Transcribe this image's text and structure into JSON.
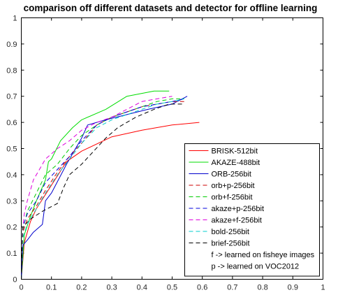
{
  "chart_data": {
    "type": "line",
    "title": "comparison off different datasets and detector for offline learning",
    "xlabel": "",
    "ylabel": "",
    "xlim": [
      0,
      1
    ],
    "ylim": [
      0,
      1
    ],
    "xticks": [
      "0",
      "0.1",
      "0.2",
      "0.3",
      "0.4",
      "0.5",
      "0.6",
      "0.7",
      "0.8",
      "0.9",
      "1"
    ],
    "yticks": [
      "0",
      "0.1",
      "0.2",
      "0.3",
      "0.4",
      "0.5",
      "0.6",
      "0.7",
      "0.8",
      "0.9",
      "1"
    ],
    "grid": false,
    "legend_position": "bottom-right",
    "legend_notes": [
      "f -> learned on fisheye images",
      "p -> learned on VOC2012"
    ],
    "series": [
      {
        "name": "BRISK-512bit",
        "color": "#ff0000",
        "dash": "solid",
        "x": [
          0,
          0.01,
          0.03,
          0.05,
          0.1,
          0.15,
          0.2,
          0.3,
          0.4,
          0.5,
          0.59
        ],
        "y": [
          0,
          0.14,
          0.22,
          0.27,
          0.36,
          0.45,
          0.49,
          0.545,
          0.57,
          0.59,
          0.6
        ]
      },
      {
        "name": "AKAZE-488bit",
        "color": "#00dd00",
        "dash": "solid",
        "x": [
          0,
          0.01,
          0.03,
          0.05,
          0.08,
          0.09,
          0.1,
          0.13,
          0.17,
          0.2,
          0.28,
          0.35,
          0.44,
          0.49
        ],
        "y": [
          0,
          0.17,
          0.24,
          0.3,
          0.38,
          0.45,
          0.46,
          0.53,
          0.58,
          0.61,
          0.65,
          0.7,
          0.72,
          0.72
        ]
      },
      {
        "name": "ORB-256bit",
        "color": "#0000cc",
        "dash": "solid",
        "x": [
          0,
          0.005,
          0.02,
          0.04,
          0.06,
          0.07,
          0.08,
          0.1,
          0.15,
          0.2,
          0.22,
          0.28,
          0.35,
          0.42,
          0.5,
          0.55
        ],
        "y": [
          0,
          0.13,
          0.15,
          0.18,
          0.2,
          0.21,
          0.3,
          0.33,
          0.44,
          0.54,
          0.59,
          0.61,
          0.63,
          0.65,
          0.67,
          0.7
        ]
      },
      {
        "name": "orb+p-256bit",
        "color": "#cc0000",
        "dash": "dashed",
        "x": [
          0,
          0.005,
          0.02,
          0.05,
          0.08,
          0.12,
          0.16,
          0.2,
          0.25,
          0.3,
          0.35,
          0.4,
          0.45,
          0.5,
          0.54
        ],
        "y": [
          0,
          0.18,
          0.23,
          0.28,
          0.34,
          0.41,
          0.47,
          0.52,
          0.59,
          0.62,
          0.64,
          0.66,
          0.67,
          0.68,
          0.68
        ]
      },
      {
        "name": "orb+f-256bit",
        "color": "#00cc00",
        "dash": "dashed",
        "x": [
          0,
          0.005,
          0.02,
          0.05,
          0.08,
          0.12,
          0.16,
          0.2,
          0.25,
          0.3,
          0.35,
          0.4,
          0.45,
          0.5,
          0.54
        ],
        "y": [
          0,
          0.19,
          0.26,
          0.33,
          0.4,
          0.44,
          0.5,
          0.55,
          0.59,
          0.62,
          0.64,
          0.66,
          0.68,
          0.69,
          0.69
        ]
      },
      {
        "name": "akaze+p-256bit",
        "color": "#0000dd",
        "dash": "dashed",
        "x": [
          0,
          0.005,
          0.02,
          0.05,
          0.08,
          0.12,
          0.16,
          0.2,
          0.25,
          0.3,
          0.35,
          0.4,
          0.45,
          0.5,
          0.54
        ],
        "y": [
          0,
          0.2,
          0.25,
          0.3,
          0.37,
          0.42,
          0.47,
          0.53,
          0.59,
          0.62,
          0.64,
          0.66,
          0.67,
          0.68,
          0.69
        ]
      },
      {
        "name": "akaze+f-256bit",
        "color": "#dd00dd",
        "dash": "dashed",
        "x": [
          0,
          0.005,
          0.01,
          0.02,
          0.04,
          0.08,
          0.12,
          0.16,
          0.2,
          0.25,
          0.3,
          0.35,
          0.4,
          0.45,
          0.5
        ],
        "y": [
          0,
          0.2,
          0.25,
          0.3,
          0.38,
          0.46,
          0.5,
          0.53,
          0.57,
          0.6,
          0.62,
          0.65,
          0.68,
          0.69,
          0.7
        ]
      },
      {
        "name": "bold-256bit",
        "color": "#00cccc",
        "dash": "dashed",
        "x": [
          0,
          0.005,
          0.02,
          0.05,
          0.08,
          0.12,
          0.16,
          0.2,
          0.25,
          0.3,
          0.35,
          0.4,
          0.45,
          0.5,
          0.54
        ],
        "y": [
          0,
          0.16,
          0.21,
          0.27,
          0.33,
          0.4,
          0.46,
          0.52,
          0.58,
          0.61,
          0.63,
          0.65,
          0.67,
          0.68,
          0.69
        ]
      },
      {
        "name": "brief-256bit",
        "color": "#000000",
        "dash": "dashed",
        "x": [
          0,
          0.005,
          0.03,
          0.07,
          0.12,
          0.14,
          0.16,
          0.2,
          0.24,
          0.28,
          0.32,
          0.38,
          0.44,
          0.49,
          0.54
        ],
        "y": [
          0,
          0.2,
          0.23,
          0.26,
          0.29,
          0.35,
          0.4,
          0.44,
          0.49,
          0.54,
          0.58,
          0.62,
          0.65,
          0.67,
          0.67
        ]
      }
    ]
  }
}
